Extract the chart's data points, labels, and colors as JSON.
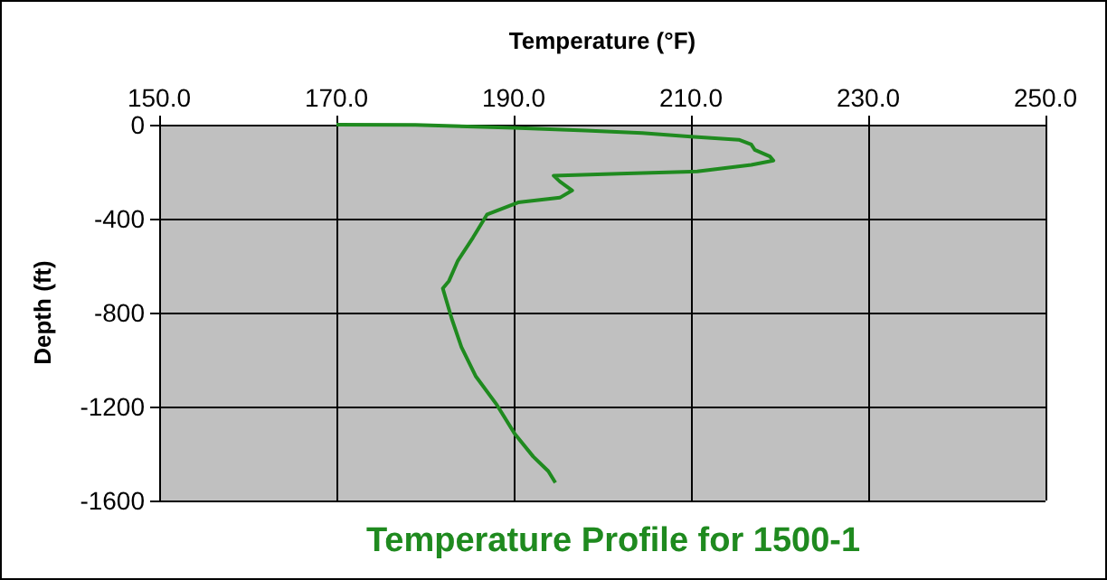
{
  "chart_data": {
    "type": "line",
    "title": "Temperature Profile for 1500-1",
    "xlabel": "Temperature (°F)",
    "ylabel": "Depth (ft)",
    "series": [
      {
        "color": "#1f8a1f",
        "x": [
          170,
          178.9,
          190,
          198.1,
          204.5,
          210,
          215.4,
          216.8,
          217.2,
          218.9,
          219.3,
          216.8,
          210.7,
          201.9,
          194.5,
          195.2,
          196.6,
          195.2,
          190.5,
          187,
          185.4,
          183.7,
          182.7,
          182,
          183,
          184.1,
          185.7,
          188.1,
          190.1,
          192.2,
          193.9,
          194.7
        ],
        "values": [
          0,
          -1,
          -13,
          -25,
          -36,
          -51,
          -64,
          -84,
          -107,
          -135,
          -153,
          -171,
          -199,
          -209,
          -217,
          -242,
          -280,
          -311,
          -331,
          -382,
          -481,
          -579,
          -665,
          -697,
          -825,
          -947,
          -1070,
          -1193,
          -1315,
          -1413,
          -1475,
          -1524
        ]
      }
    ],
    "xlim": [
      150,
      250
    ],
    "xticks": [
      {
        "value": 150,
        "label": "150.0"
      },
      {
        "value": 170,
        "label": "170.0"
      },
      {
        "value": 190,
        "label": "190.0"
      },
      {
        "value": 210,
        "label": "210.0"
      },
      {
        "value": 230,
        "label": "230.0"
      },
      {
        "value": 250,
        "label": "250.0"
      }
    ],
    "ylim": [
      -1600,
      0
    ],
    "yticks": [
      0,
      -400,
      -800,
      -1200,
      -1600
    ],
    "grid": true,
    "marker": "none",
    "line_style": "solid"
  }
}
